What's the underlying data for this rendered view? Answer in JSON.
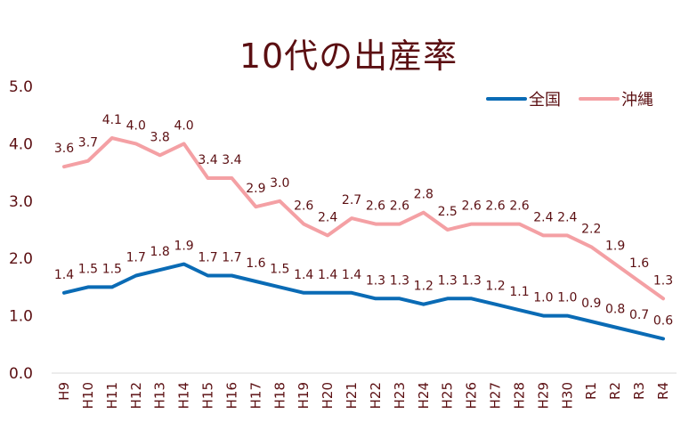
{
  "chart_data": {
    "type": "line",
    "title": "10代の出産率",
    "xlabel": "",
    "ylabel": "",
    "ylim": [
      0,
      5
    ],
    "yticks": [
      "0.0",
      "1.0",
      "2.0",
      "3.0",
      "4.0",
      "5.0"
    ],
    "grid": false,
    "legend_position": "top-right",
    "categories": [
      "H9",
      "H10",
      "H11",
      "H12",
      "H13",
      "H14",
      "H15",
      "H16",
      "H17",
      "H18",
      "H19",
      "H20",
      "H21",
      "H22",
      "H23",
      "H24",
      "H25",
      "H26",
      "H27",
      "H28",
      "H29",
      "H30",
      "R1",
      "R2",
      "R3",
      "R4"
    ],
    "series": [
      {
        "name": "全国",
        "color": "#0a6bb5",
        "values": [
          1.4,
          1.5,
          1.5,
          1.7,
          1.8,
          1.9,
          1.7,
          1.7,
          1.6,
          1.5,
          1.4,
          1.4,
          1.4,
          1.3,
          1.3,
          1.2,
          1.3,
          1.3,
          1.2,
          1.1,
          1.0,
          1.0,
          0.9,
          0.8,
          0.7,
          0.6
        ]
      },
      {
        "name": "沖縄",
        "color": "#f4a0a4",
        "values": [
          3.6,
          3.7,
          4.1,
          4.0,
          3.8,
          4.0,
          3.4,
          3.4,
          2.9,
          3.0,
          2.6,
          2.4,
          2.7,
          2.6,
          2.6,
          2.8,
          2.5,
          2.6,
          2.6,
          2.6,
          2.4,
          2.4,
          2.2,
          1.9,
          1.6,
          1.3
        ]
      }
    ]
  }
}
